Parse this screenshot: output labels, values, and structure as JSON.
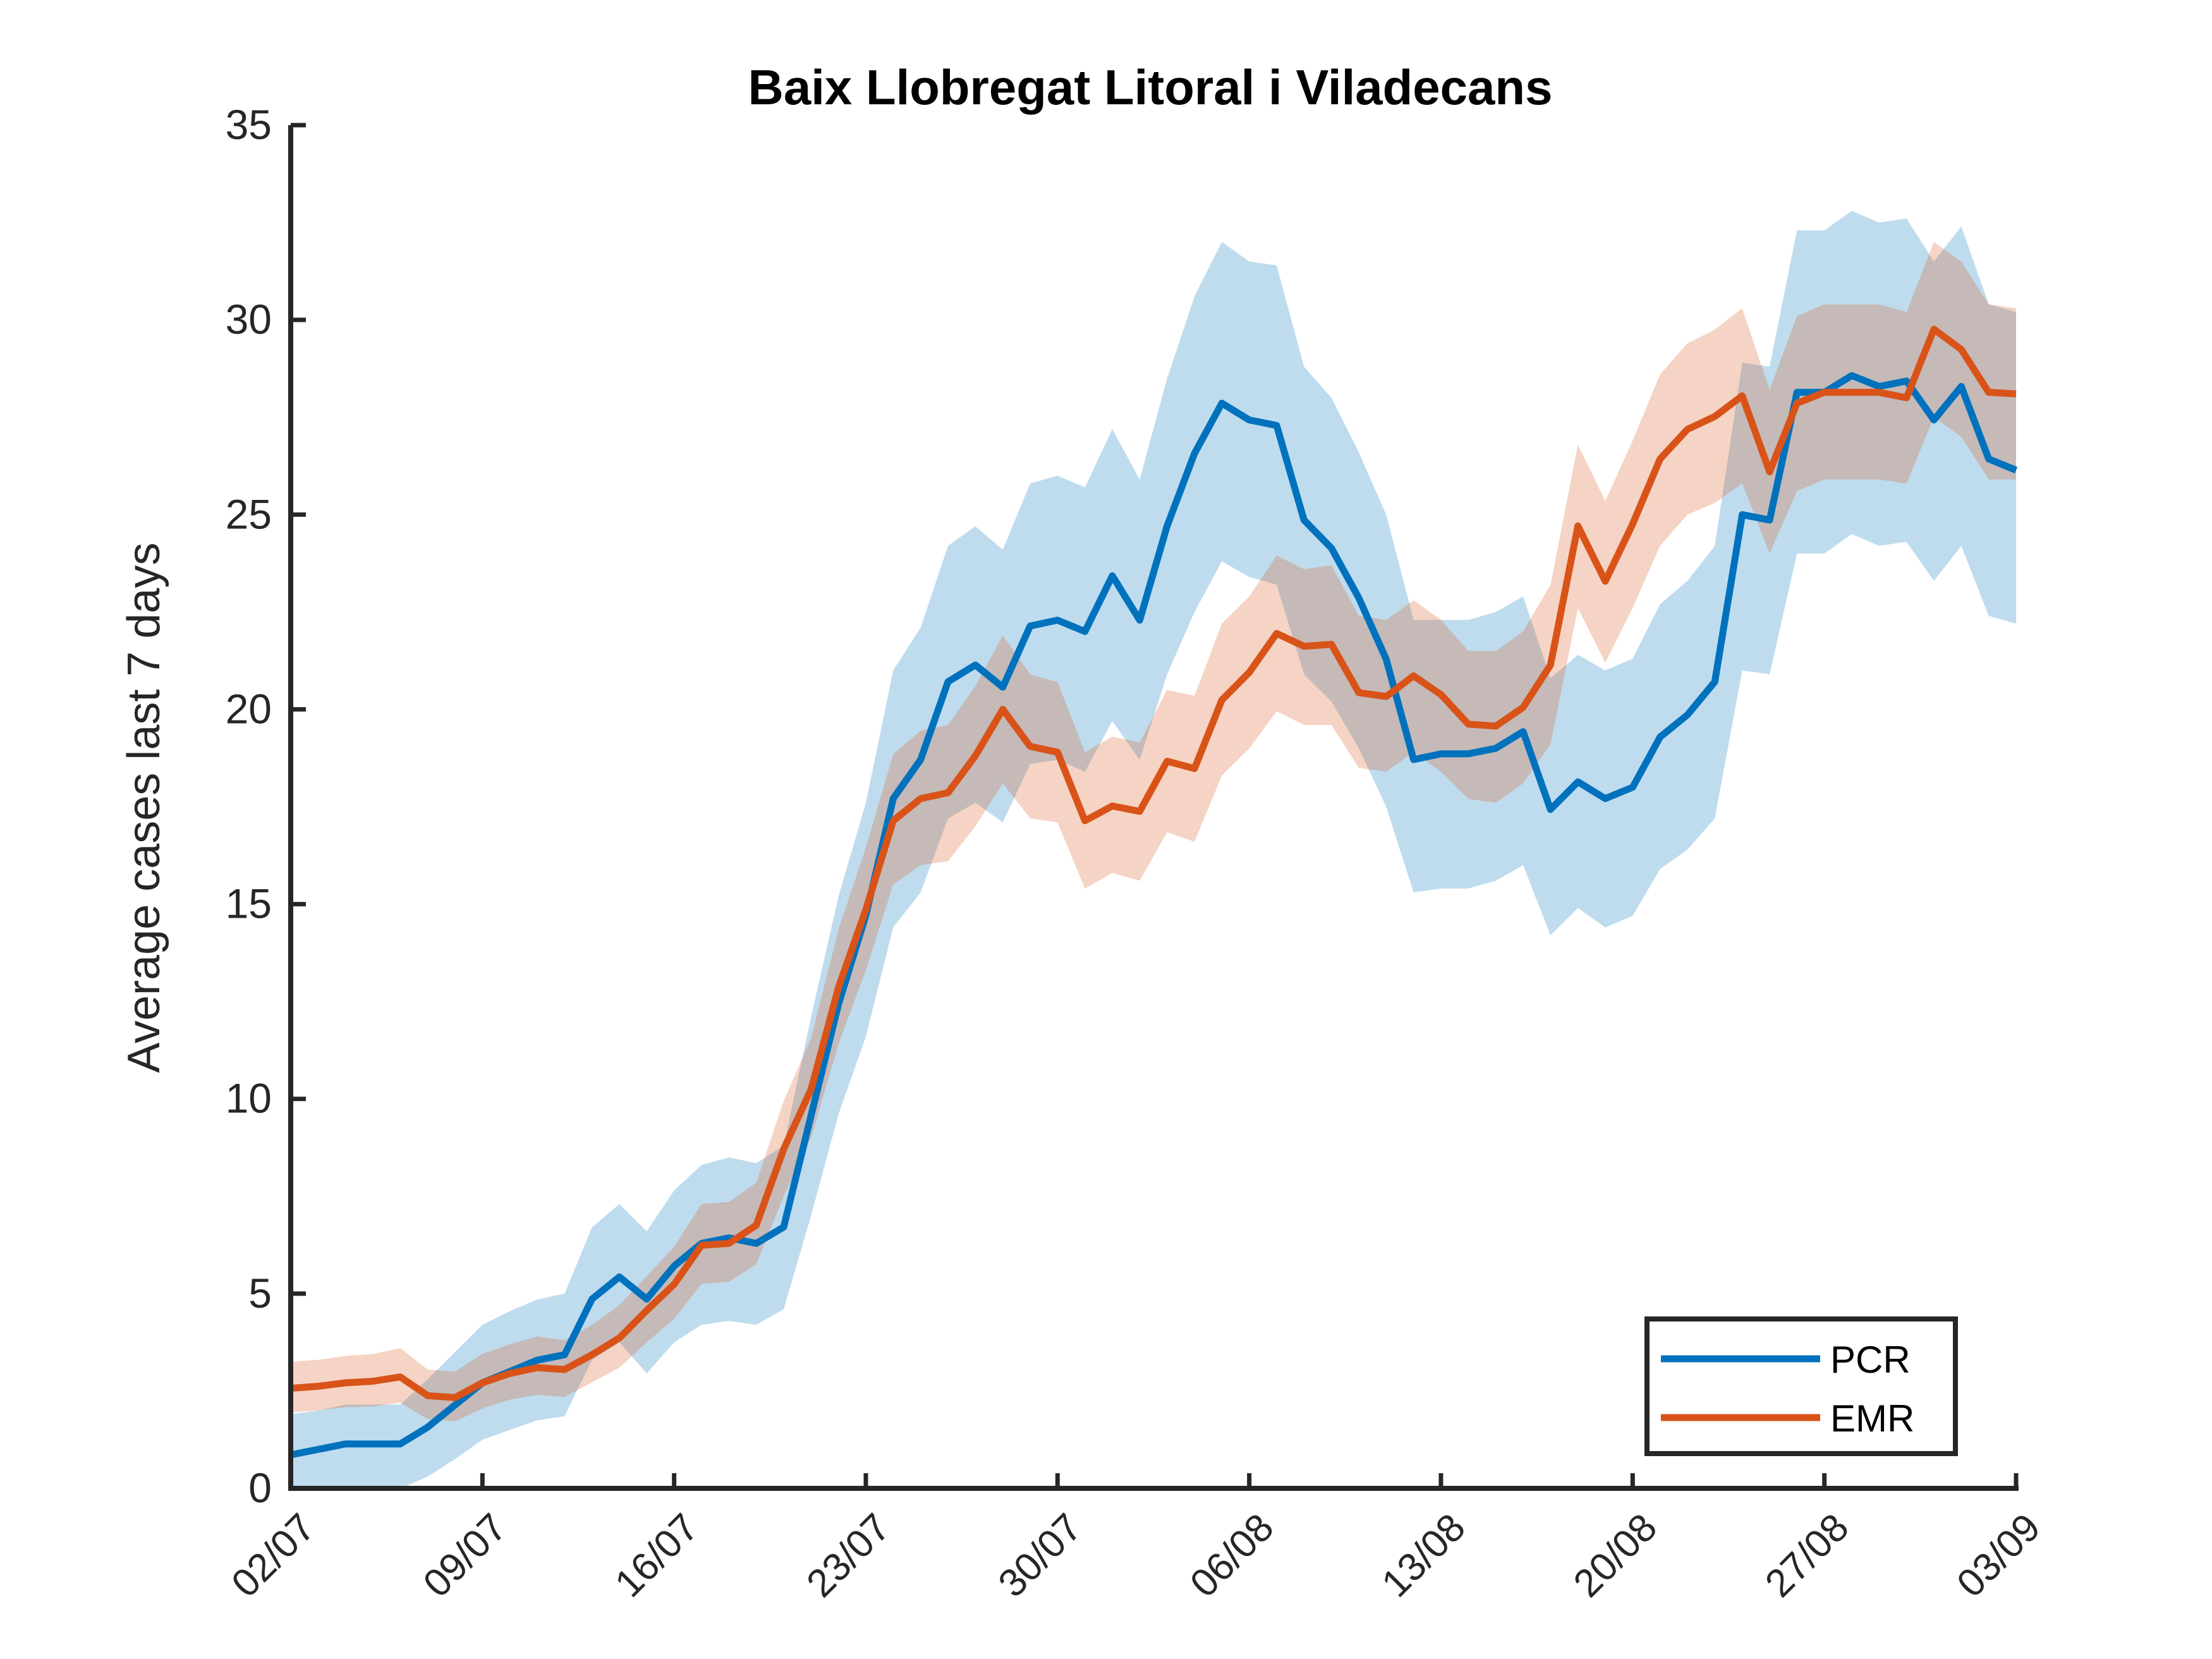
{
  "chart_data": {
    "type": "line",
    "title": "Baix Llobregat Litoral i Viladecans",
    "xlabel": "",
    "ylabel": "Average cases last 7 days",
    "xlim": [
      "02/07",
      "03/09"
    ],
    "ylim": [
      0,
      35
    ],
    "yticks": [
      0,
      5,
      10,
      15,
      20,
      25,
      30,
      35
    ],
    "xtick_labels": [
      "02/07",
      "09/07",
      "16/07",
      "23/07",
      "30/07",
      "06/08",
      "13/08",
      "20/08",
      "27/08",
      "03/09"
    ],
    "grid": false,
    "legend_position": "bottom-right",
    "x": [
      "02/07",
      "03/07",
      "04/07",
      "05/07",
      "06/07",
      "07/07",
      "08/07",
      "09/07",
      "10/07",
      "11/07",
      "12/07",
      "13/07",
      "14/07",
      "15/07",
      "16/07",
      "17/07",
      "18/07",
      "19/07",
      "20/07",
      "21/07",
      "22/07",
      "23/07",
      "24/07",
      "25/07",
      "26/07",
      "27/07",
      "28/07",
      "29/07",
      "30/07",
      "31/07",
      "01/08",
      "02/08",
      "03/08",
      "04/08",
      "05/08",
      "06/08",
      "07/08",
      "08/08",
      "09/08",
      "10/08",
      "11/08",
      "12/08",
      "13/08",
      "14/08",
      "15/08",
      "16/08",
      "17/08",
      "18/08",
      "19/08",
      "20/08",
      "21/08",
      "22/08",
      "23/08",
      "24/08",
      "25/08",
      "26/08",
      "27/08",
      "28/08",
      "29/08",
      "30/08",
      "31/08",
      "01/09",
      "02/09",
      "03/09"
    ],
    "series": [
      {
        "name": "PCR",
        "color": "#0072BD",
        "values": [
          0.86,
          1.0,
          1.14,
          1.14,
          1.14,
          1.57,
          2.14,
          2.71,
          3.0,
          3.29,
          3.43,
          4.86,
          5.43,
          4.86,
          5.71,
          6.29,
          6.43,
          6.29,
          6.71,
          9.57,
          12.43,
          14.71,
          17.71,
          18.71,
          20.71,
          21.14,
          20.57,
          22.14,
          22.29,
          22.0,
          23.43,
          22.29,
          24.71,
          26.57,
          27.86,
          27.43,
          27.29,
          24.86,
          24.14,
          22.86,
          21.29,
          18.71,
          18.86,
          18.86,
          19.0,
          19.43,
          17.43,
          18.14,
          17.71,
          18.0,
          19.29,
          19.86,
          20.71,
          25.0,
          24.86,
          28.14,
          28.14,
          28.57,
          28.29,
          28.43,
          27.43,
          28.29,
          26.43,
          26.14
        ],
        "lower": [
          0.0,
          0.0,
          0.0,
          0.0,
          0.0,
          0.3,
          0.75,
          1.25,
          1.5,
          1.75,
          1.85,
          3.3,
          3.75,
          2.95,
          3.75,
          4.2,
          4.3,
          4.2,
          4.6,
          7.0,
          9.6,
          11.6,
          14.4,
          15.3,
          17.2,
          17.6,
          17.1,
          18.6,
          18.7,
          18.4,
          19.7,
          18.7,
          20.9,
          22.5,
          23.8,
          23.4,
          23.2,
          20.9,
          20.2,
          19.0,
          17.5,
          15.3,
          15.4,
          15.4,
          15.6,
          16.0,
          14.2,
          14.9,
          14.4,
          14.7,
          15.9,
          16.4,
          17.2,
          21.0,
          20.9,
          24.0,
          24.0,
          24.5,
          24.2,
          24.3,
          23.3,
          24.2,
          22.4,
          22.2
        ],
        "upper": [
          1.9,
          2.0,
          2.15,
          2.15,
          2.15,
          2.8,
          3.5,
          4.2,
          4.55,
          4.85,
          5.0,
          6.7,
          7.3,
          6.6,
          7.65,
          8.3,
          8.5,
          8.35,
          8.8,
          12.1,
          15.2,
          17.6,
          21.0,
          22.1,
          24.2,
          24.7,
          24.1,
          25.8,
          26.0,
          25.7,
          27.2,
          25.9,
          28.5,
          30.6,
          32.0,
          31.5,
          31.4,
          28.8,
          28.0,
          26.6,
          25.0,
          22.3,
          22.3,
          22.3,
          22.5,
          22.9,
          20.8,
          21.4,
          21.0,
          21.3,
          22.7,
          23.3,
          24.2,
          28.9,
          28.8,
          32.3,
          32.3,
          32.8,
          32.5,
          32.6,
          31.5,
          32.4,
          30.4,
          30.2
        ]
      },
      {
        "name": "EMR",
        "color": "#D95319",
        "values": [
          2.57,
          2.62,
          2.71,
          2.75,
          2.86,
          2.38,
          2.33,
          2.71,
          2.95,
          3.1,
          3.05,
          3.43,
          3.86,
          4.57,
          5.24,
          6.24,
          6.29,
          6.76,
          8.71,
          10.24,
          12.86,
          14.86,
          17.14,
          17.71,
          17.86,
          18.81,
          20.0,
          19.05,
          18.9,
          17.14,
          17.52,
          17.38,
          18.67,
          18.48,
          20.24,
          20.95,
          21.95,
          21.62,
          21.67,
          20.43,
          20.33,
          20.86,
          20.38,
          19.62,
          19.57,
          20.05,
          21.14,
          24.71,
          23.29,
          24.76,
          26.43,
          27.19,
          27.52,
          28.05,
          26.1,
          27.86,
          28.14,
          28.14,
          28.14,
          28.0,
          29.76,
          29.24,
          28.14,
          28.1
        ],
        "lower": [
          1.95,
          2.0,
          2.08,
          2.1,
          2.2,
          1.78,
          1.72,
          2.05,
          2.28,
          2.4,
          2.35,
          2.72,
          3.1,
          3.75,
          4.35,
          5.25,
          5.3,
          5.75,
          7.5,
          9.0,
          11.4,
          13.3,
          15.5,
          16.0,
          16.1,
          17.0,
          18.1,
          17.2,
          17.1,
          15.4,
          15.8,
          15.6,
          16.85,
          16.6,
          18.3,
          19.0,
          19.95,
          19.6,
          19.6,
          18.5,
          18.4,
          18.9,
          18.4,
          17.7,
          17.6,
          18.1,
          19.1,
          22.6,
          21.2,
          22.6,
          24.2,
          25.0,
          25.3,
          25.8,
          24.0,
          25.6,
          25.9,
          25.9,
          25.9,
          25.8,
          27.5,
          27.0,
          25.9,
          25.9
        ],
        "upper": [
          3.25,
          3.3,
          3.4,
          3.45,
          3.6,
          3.05,
          3.0,
          3.45,
          3.7,
          3.9,
          3.8,
          4.2,
          4.7,
          5.45,
          6.2,
          7.3,
          7.35,
          7.85,
          9.95,
          11.55,
          14.35,
          16.45,
          18.85,
          19.45,
          19.6,
          20.6,
          21.9,
          20.9,
          20.7,
          18.9,
          19.3,
          19.15,
          20.5,
          20.35,
          22.2,
          22.9,
          23.95,
          23.6,
          23.7,
          22.4,
          22.3,
          22.8,
          22.3,
          21.5,
          21.5,
          22.0,
          23.2,
          26.8,
          25.35,
          26.9,
          28.6,
          29.4,
          29.75,
          30.3,
          28.2,
          30.1,
          30.4,
          30.4,
          30.4,
          30.2,
          32.0,
          31.5,
          30.4,
          30.3
        ]
      }
    ]
  }
}
